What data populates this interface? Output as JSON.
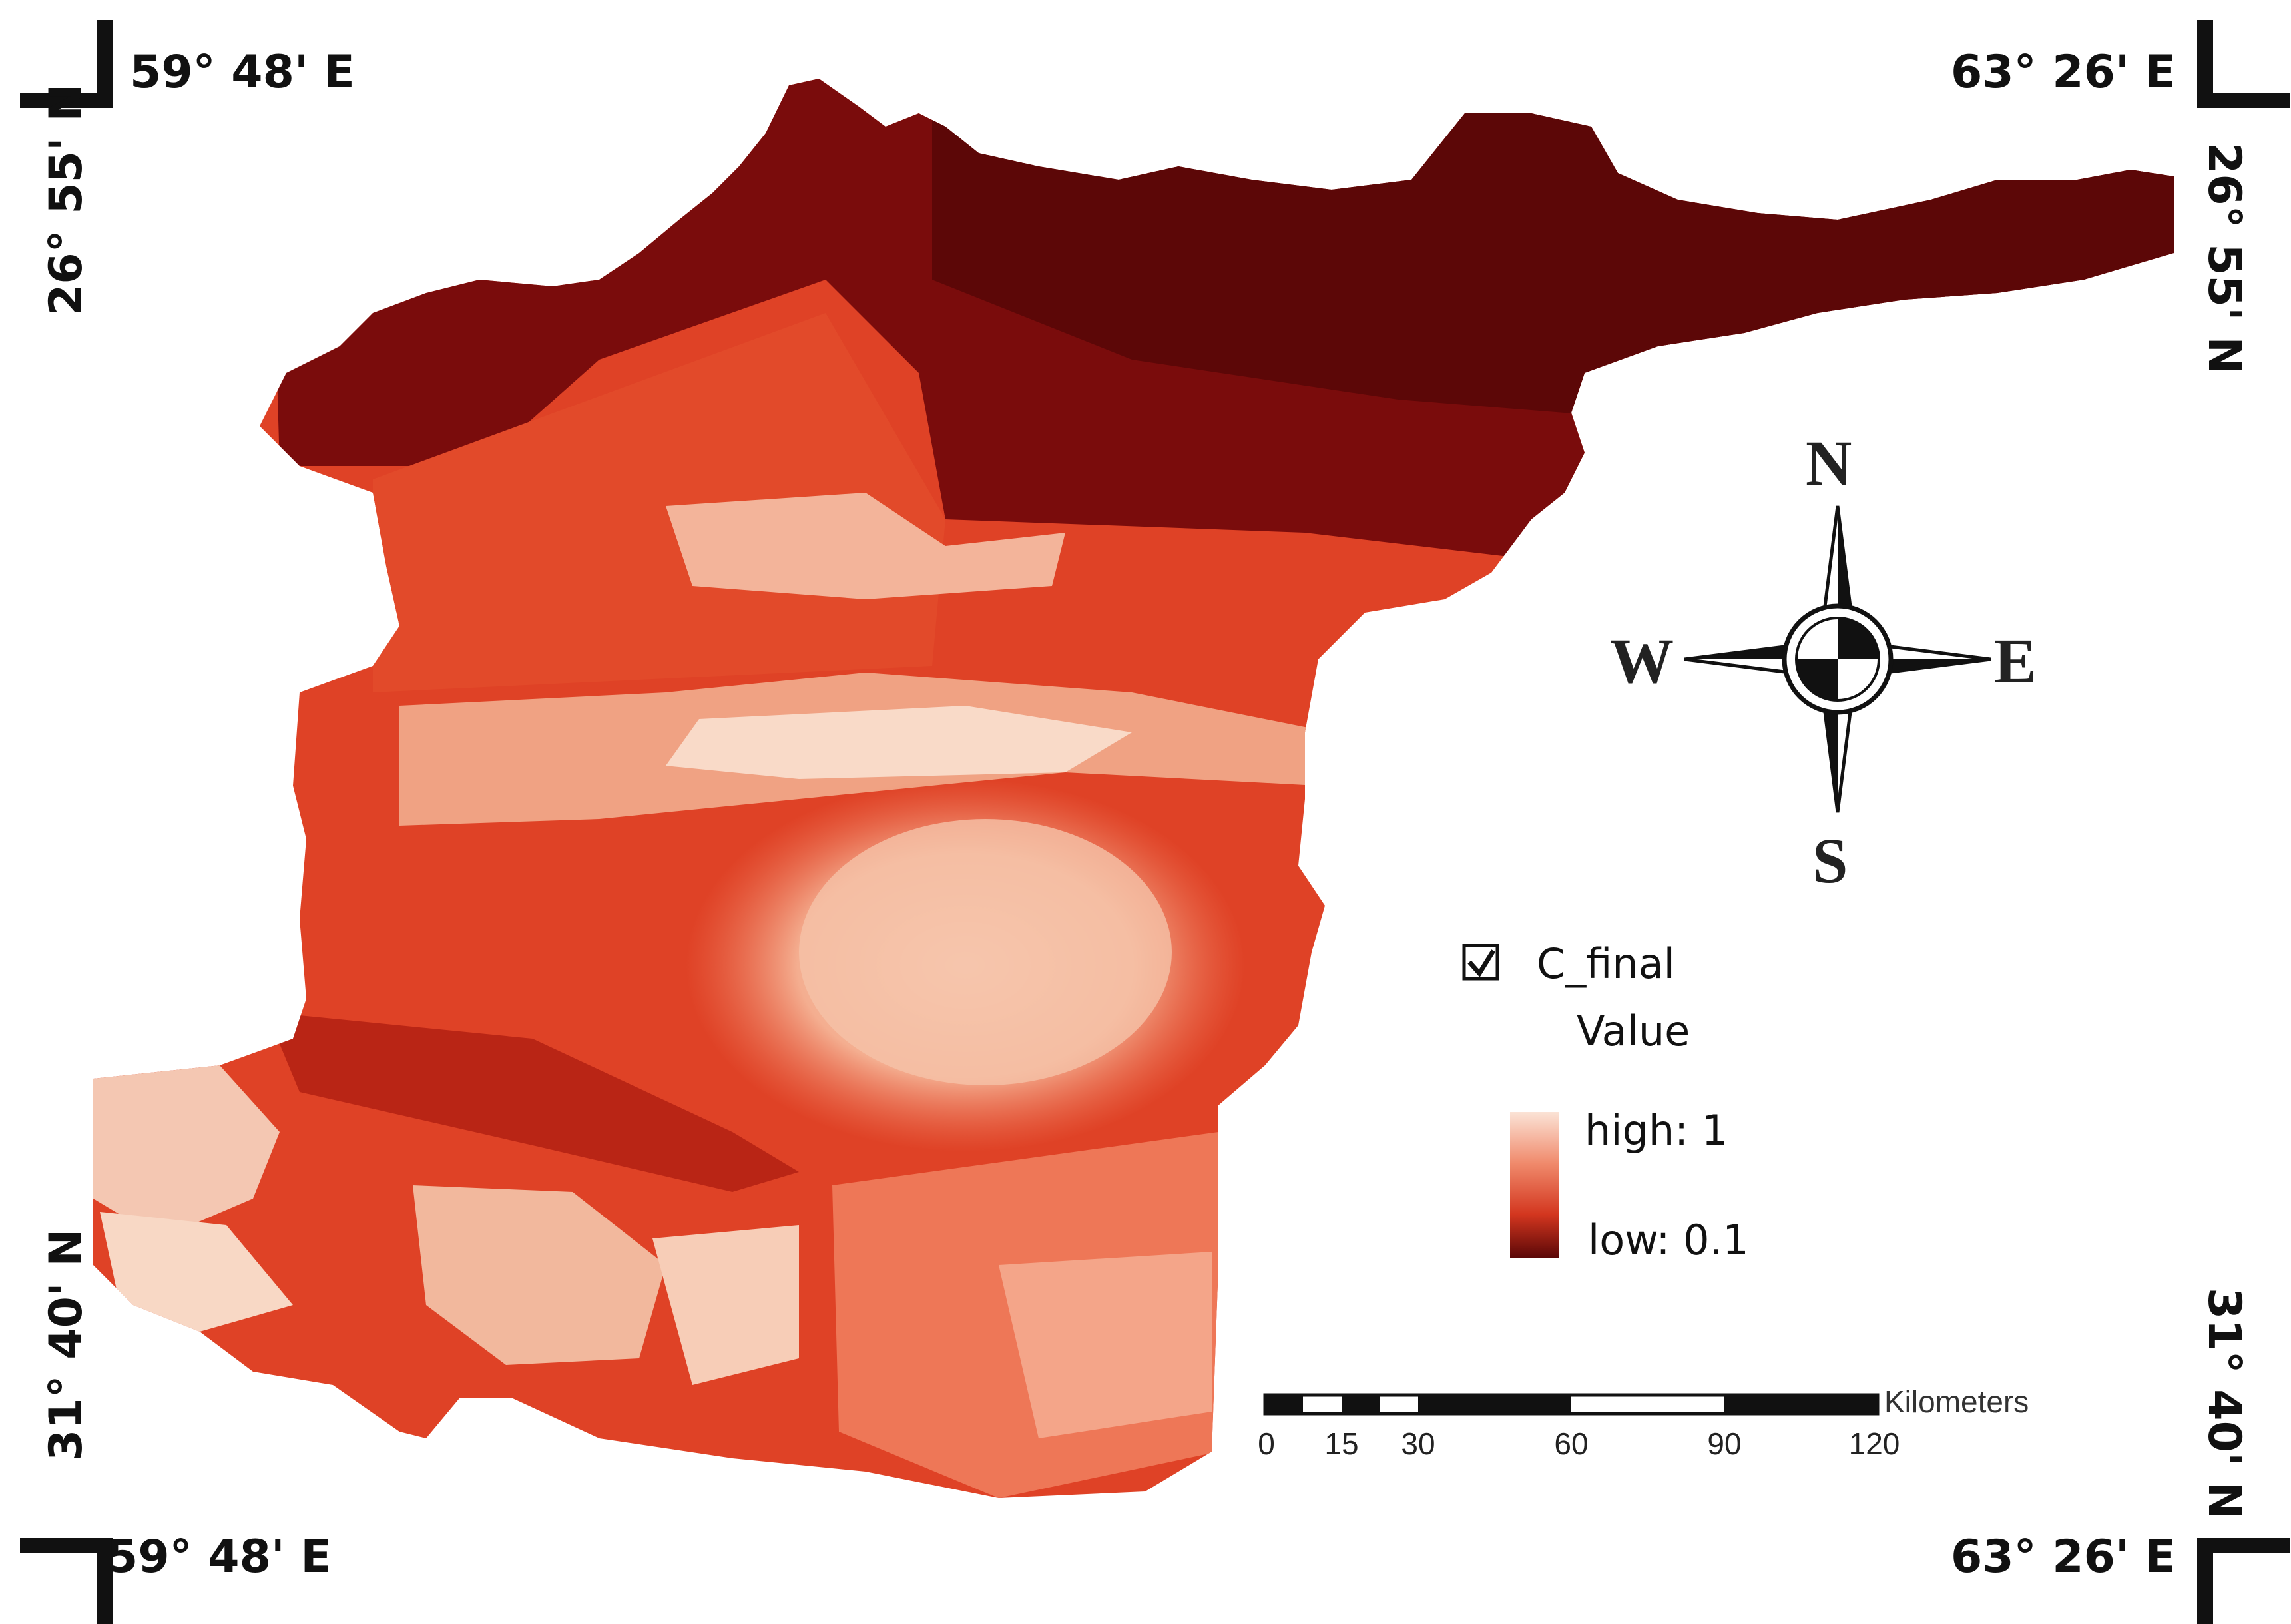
{
  "corners": {
    "top_left_lon": "59° 48' E",
    "top_left_lat": "26° 55' N",
    "top_right_lon": "63° 26' E",
    "top_right_lat": "26° 55' N",
    "bottom_left_lon": "59° 48' E",
    "bottom_left_lat": "31° 40' N",
    "bottom_right_lon": "63° 26' E",
    "bottom_right_lat": "31° 40' N"
  },
  "compass": {
    "n": "N",
    "s": "S",
    "e": "E",
    "w": "W"
  },
  "legend": {
    "checked": true,
    "layer_name": "C_final",
    "field": "Value",
    "high_label": "high: 1",
    "low_label": "low: 0.1",
    "ramp_colors": [
      "#fbe3d6",
      "#f08a6c",
      "#d3361f",
      "#5a0707"
    ]
  },
  "scale_bar": {
    "unit": "Kilometers",
    "ticks": [
      "0",
      "15",
      "30",
      "60",
      "90",
      "120"
    ]
  },
  "colors": {
    "dark_red": "#6e0a0a",
    "mid_red": "#d9381f",
    "light_red": "#ee6a4c",
    "pale": "#f6c3aa"
  }
}
